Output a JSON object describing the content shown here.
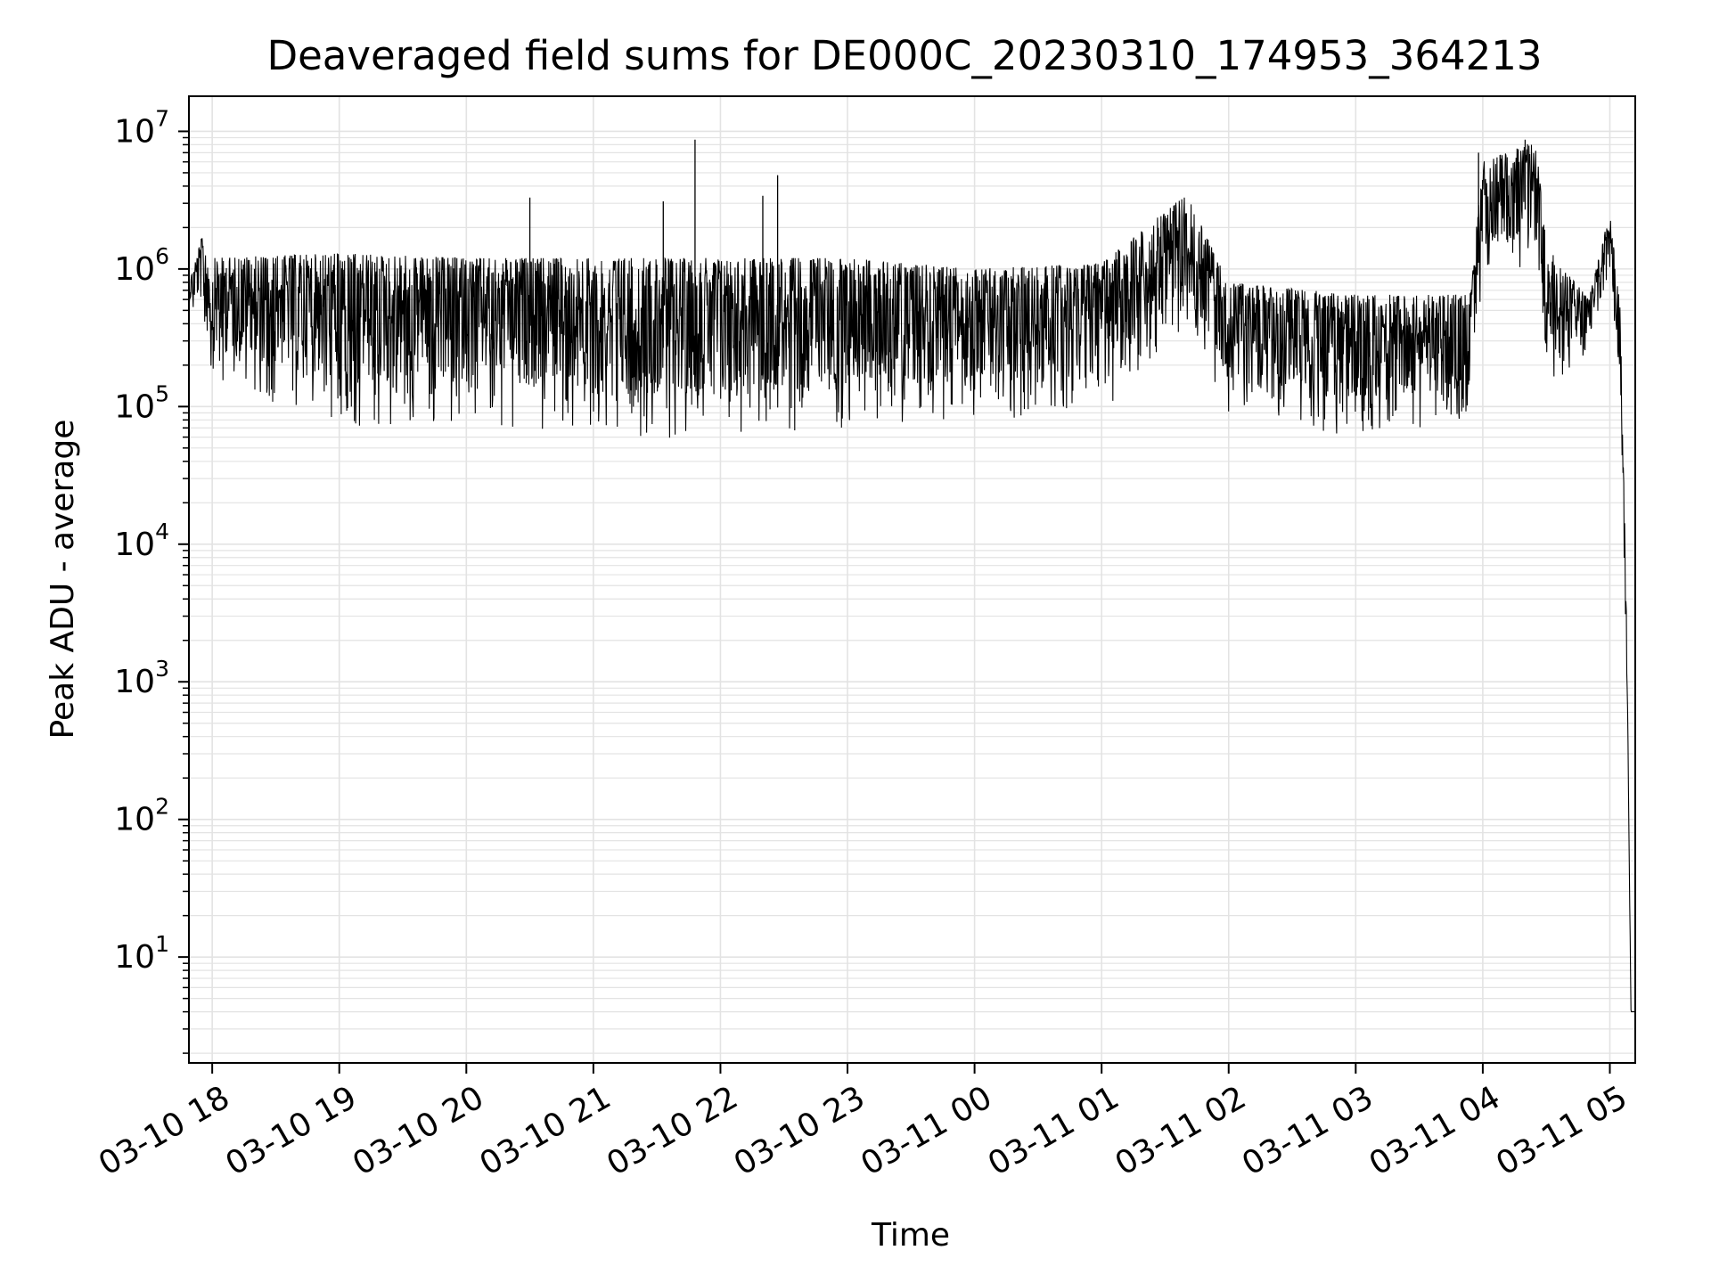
{
  "chart_data": {
    "type": "line",
    "title": "Deaveraged field sums for DE000C_20230310_174953_364213",
    "xlabel": "Time",
    "ylabel": "Peak ADU - average",
    "yscale": "log",
    "ylim": [
      1.7,
      18000000
    ],
    "xlim": [
      "03-10 17:49",
      "03-11 05:12"
    ],
    "grid": true,
    "line_color": "#000000",
    "grid_color": "#e3e3e3",
    "x_ticks": [
      "03-10 18",
      "03-10 19",
      "03-10 20",
      "03-10 21",
      "03-10 22",
      "03-10 23",
      "03-11 00",
      "03-11 01",
      "03-11 02",
      "03-11 03",
      "03-11 04",
      "03-11 05"
    ],
    "y_ticks": [
      {
        "base": "10",
        "exp": "1",
        "value": 10
      },
      {
        "base": "10",
        "exp": "2",
        "value": 100
      },
      {
        "base": "10",
        "exp": "3",
        "value": 1000
      },
      {
        "base": "10",
        "exp": "4",
        "value": 10000
      },
      {
        "base": "10",
        "exp": "5",
        "value": 100000
      },
      {
        "base": "10",
        "exp": "6",
        "value": 1000000
      },
      {
        "base": "10",
        "exp": "7",
        "value": 10000000
      }
    ],
    "series": [
      {
        "envelope_hourly": [
          {
            "x": "03-10 17:49",
            "high": 800000,
            "low": 500000
          },
          {
            "x": "03-10 17:55",
            "high": 1700000,
            "low": 400000
          },
          {
            "x": "03-10 18:00",
            "high": 1200000,
            "low": 150000
          },
          {
            "x": "03-10 19:00",
            "high": 1300000,
            "low": 70000
          },
          {
            "x": "03-10 20:00",
            "high": 1200000,
            "low": 75000
          },
          {
            "x": "03-10 21:00",
            "high": 1200000,
            "low": 65000
          },
          {
            "x": "03-10 22:00",
            "high": 1200000,
            "low": 55000
          },
          {
            "x": "03-10 23:00",
            "high": 1200000,
            "low": 70000
          },
          {
            "x": "03-11 00:00",
            "high": 1000000,
            "low": 80000
          },
          {
            "x": "03-11 01:00",
            "high": 1100000,
            "low": 90000
          },
          {
            "x": "03-11 01:40",
            "high": 3500000,
            "low": 400000
          },
          {
            "x": "03-11 02:00",
            "high": 800000,
            "low": 90000
          },
          {
            "x": "03-11 03:00",
            "high": 650000,
            "low": 60000
          },
          {
            "x": "03-11 03:54",
            "high": 650000,
            "low": 80000
          },
          {
            "x": "03-11 04:00",
            "high": 6000000,
            "low": 1000000
          },
          {
            "x": "03-11 04:25",
            "high": 8500000,
            "low": 900000
          },
          {
            "x": "03-11 04:30",
            "high": 1500000,
            "low": 120000
          },
          {
            "x": "03-11 04:50",
            "high": 600000,
            "low": 250000
          },
          {
            "x": "03-11 05:00",
            "high": 2600000,
            "low": 1000000
          },
          {
            "x": "03-11 05:05",
            "high": 500000,
            "low": 100000
          },
          {
            "x": "03-11 05:08",
            "high": 2300,
            "low": 1000
          },
          {
            "x": "03-11 05:10",
            "high": 4,
            "low": 4
          },
          {
            "x": "03-11 05:12",
            "high": 4,
            "low": 4
          }
        ],
        "spikes": [
          {
            "x": "03-10 20:30",
            "value": 3300000
          },
          {
            "x": "03-10 21:33",
            "value": 3100000
          },
          {
            "x": "03-10 21:48",
            "value": 8700000
          },
          {
            "x": "03-10 22:20",
            "value": 3400000
          },
          {
            "x": "03-10 22:27",
            "value": 4800000
          },
          {
            "x": "03-11 03:58",
            "value": 7000000
          },
          {
            "x": "03-11 04:20",
            "value": 8700000
          }
        ]
      }
    ]
  }
}
